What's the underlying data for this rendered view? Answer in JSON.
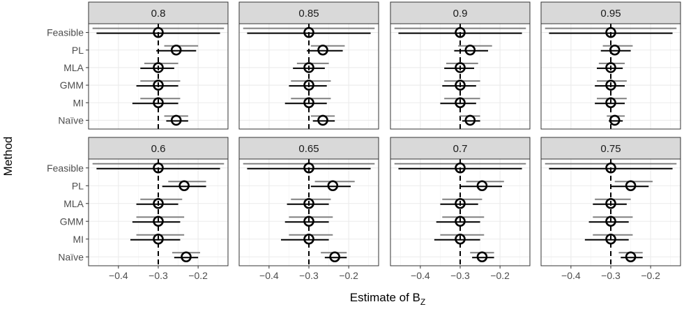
{
  "chart_data": {
    "type": "forest",
    "xlabel": "Estimate of B",
    "xlabel_subscript": "Z",
    "ylabel": "Method",
    "methods": [
      "Feasible",
      "PL",
      "MLA",
      "GMM",
      "MI",
      "Naïve"
    ],
    "xlim": [
      -0.475,
      -0.125
    ],
    "xticks": [
      -0.4,
      -0.3,
      -0.2
    ],
    "xtick_labels": [
      "−0.4",
      "−0.3",
      "−0.2"
    ],
    "reference_line": -0.3,
    "grid": true,
    "colors": {
      "interval": "#000000",
      "reference_interval": "#808080",
      "strip_fill": "#d9d9d9",
      "panel_border": "#333333",
      "grid": "#ebebeb"
    },
    "panels": [
      {
        "label": "0.8",
        "points": [
          {
            "method": "Feasible",
            "est": -0.3,
            "low": -0.455,
            "high": -0.145,
            "ref_low": -0.465,
            "ref_high": -0.135
          },
          {
            "method": "PL",
            "est": -0.255,
            "low": -0.305,
            "high": -0.205,
            "ref_low": -0.285,
            "ref_high": -0.2
          },
          {
            "method": "MLA",
            "est": -0.3,
            "low": -0.345,
            "high": -0.26,
            "ref_low": -0.335,
            "ref_high": -0.25
          },
          {
            "method": "GMM",
            "est": -0.3,
            "low": -0.355,
            "high": -0.25,
            "ref_low": -0.345,
            "ref_high": -0.245
          },
          {
            "method": "MI",
            "est": -0.3,
            "low": -0.365,
            "high": -0.25,
            "ref_low": -0.345,
            "ref_high": -0.245
          },
          {
            "method": "Naïve",
            "est": -0.255,
            "low": -0.28,
            "high": -0.225,
            "ref_low": -0.285,
            "ref_high": -0.225
          }
        ]
      },
      {
        "label": "0.85",
        "points": [
          {
            "method": "Feasible",
            "est": -0.3,
            "low": -0.455,
            "high": -0.145,
            "ref_low": -0.465,
            "ref_high": -0.135
          },
          {
            "method": "PL",
            "est": -0.265,
            "low": -0.305,
            "high": -0.215,
            "ref_low": -0.295,
            "ref_high": -0.21
          },
          {
            "method": "MLA",
            "est": -0.3,
            "low": -0.34,
            "high": -0.26,
            "ref_low": -0.33,
            "ref_high": -0.25
          },
          {
            "method": "GMM",
            "est": -0.3,
            "low": -0.35,
            "high": -0.255,
            "ref_low": -0.345,
            "ref_high": -0.245
          },
          {
            "method": "MI",
            "est": -0.3,
            "low": -0.36,
            "high": -0.255,
            "ref_low": -0.345,
            "ref_high": -0.245
          },
          {
            "method": "Naïve",
            "est": -0.265,
            "low": -0.29,
            "high": -0.235,
            "ref_low": -0.295,
            "ref_high": -0.235
          }
        ]
      },
      {
        "label": "0.9",
        "points": [
          {
            "method": "Feasible",
            "est": -0.3,
            "low": -0.455,
            "high": -0.145,
            "ref_low": -0.465,
            "ref_high": -0.135
          },
          {
            "method": "PL",
            "est": -0.275,
            "low": -0.315,
            "high": -0.23,
            "ref_low": -0.305,
            "ref_high": -0.22
          },
          {
            "method": "MLA",
            "est": -0.3,
            "low": -0.34,
            "high": -0.265,
            "ref_low": -0.335,
            "ref_high": -0.255
          },
          {
            "method": "GMM",
            "est": -0.3,
            "low": -0.345,
            "high": -0.26,
            "ref_low": -0.34,
            "ref_high": -0.25
          },
          {
            "method": "MI",
            "est": -0.3,
            "low": -0.35,
            "high": -0.26,
            "ref_low": -0.34,
            "ref_high": -0.25
          },
          {
            "method": "Naïve",
            "est": -0.275,
            "low": -0.295,
            "high": -0.25,
            "ref_low": -0.3,
            "ref_high": -0.25
          }
        ]
      },
      {
        "label": "0.95",
        "points": [
          {
            "method": "Feasible",
            "est": -0.3,
            "low": -0.455,
            "high": -0.145,
            "ref_low": -0.465,
            "ref_high": -0.135
          },
          {
            "method": "PL",
            "est": -0.29,
            "low": -0.325,
            "high": -0.25,
            "ref_low": -0.32,
            "ref_high": -0.245
          },
          {
            "method": "MLA",
            "est": -0.3,
            "low": -0.335,
            "high": -0.27,
            "ref_low": -0.33,
            "ref_high": -0.265
          },
          {
            "method": "GMM",
            "est": -0.3,
            "low": -0.34,
            "high": -0.265,
            "ref_low": -0.335,
            "ref_high": -0.26
          },
          {
            "method": "MI",
            "est": -0.3,
            "low": -0.34,
            "high": -0.265,
            "ref_low": -0.335,
            "ref_high": -0.26
          },
          {
            "method": "Naïve",
            "est": -0.29,
            "low": -0.305,
            "high": -0.27,
            "ref_low": -0.31,
            "ref_high": -0.265
          }
        ]
      },
      {
        "label": "0.6",
        "points": [
          {
            "method": "Feasible",
            "est": -0.3,
            "low": -0.455,
            "high": -0.145,
            "ref_low": -0.465,
            "ref_high": -0.135
          },
          {
            "method": "PL",
            "est": -0.235,
            "low": -0.29,
            "high": -0.18,
            "ref_low": -0.275,
            "ref_high": -0.18
          },
          {
            "method": "MLA",
            "est": -0.3,
            "low": -0.355,
            "high": -0.25,
            "ref_low": -0.345,
            "ref_high": -0.24
          },
          {
            "method": "GMM",
            "est": -0.3,
            "low": -0.365,
            "high": -0.245,
            "ref_low": -0.355,
            "ref_high": -0.235
          },
          {
            "method": "MI",
            "est": -0.3,
            "low": -0.37,
            "high": -0.245,
            "ref_low": -0.355,
            "ref_high": -0.235
          },
          {
            "method": "Naïve",
            "est": -0.23,
            "low": -0.26,
            "high": -0.2,
            "ref_low": -0.265,
            "ref_high": -0.195
          }
        ]
      },
      {
        "label": "0.65",
        "points": [
          {
            "method": "Feasible",
            "est": -0.3,
            "low": -0.455,
            "high": -0.145,
            "ref_low": -0.465,
            "ref_high": -0.135
          },
          {
            "method": "PL",
            "est": -0.24,
            "low": -0.295,
            "high": -0.195,
            "ref_low": -0.285,
            "ref_high": -0.185
          },
          {
            "method": "MLA",
            "est": -0.3,
            "low": -0.355,
            "high": -0.25,
            "ref_low": -0.345,
            "ref_high": -0.245
          },
          {
            "method": "GMM",
            "est": -0.3,
            "low": -0.36,
            "high": -0.25,
            "ref_low": -0.35,
            "ref_high": -0.24
          },
          {
            "method": "MI",
            "est": -0.3,
            "low": -0.37,
            "high": -0.25,
            "ref_low": -0.35,
            "ref_high": -0.24
          },
          {
            "method": "Naïve",
            "est": -0.235,
            "low": -0.26,
            "high": -0.205,
            "ref_low": -0.27,
            "ref_high": -0.205
          }
        ]
      },
      {
        "label": "0.7",
        "points": [
          {
            "method": "Feasible",
            "est": -0.3,
            "low": -0.455,
            "high": -0.145,
            "ref_low": -0.465,
            "ref_high": -0.135
          },
          {
            "method": "PL",
            "est": -0.245,
            "low": -0.3,
            "high": -0.195,
            "ref_low": -0.285,
            "ref_high": -0.19
          },
          {
            "method": "MLA",
            "est": -0.3,
            "low": -0.35,
            "high": -0.255,
            "ref_low": -0.345,
            "ref_high": -0.245
          },
          {
            "method": "GMM",
            "est": -0.3,
            "low": -0.36,
            "high": -0.25,
            "ref_low": -0.345,
            "ref_high": -0.24
          },
          {
            "method": "MI",
            "est": -0.3,
            "low": -0.365,
            "high": -0.25,
            "ref_low": -0.35,
            "ref_high": -0.24
          },
          {
            "method": "Naïve",
            "est": -0.245,
            "low": -0.27,
            "high": -0.215,
            "ref_low": -0.275,
            "ref_high": -0.215
          }
        ]
      },
      {
        "label": "0.75",
        "points": [
          {
            "method": "Feasible",
            "est": -0.3,
            "low": -0.455,
            "high": -0.145,
            "ref_low": -0.465,
            "ref_high": -0.135
          },
          {
            "method": "PL",
            "est": -0.25,
            "low": -0.3,
            "high": -0.205,
            "ref_low": -0.29,
            "ref_high": -0.195
          },
          {
            "method": "MLA",
            "est": -0.3,
            "low": -0.345,
            "high": -0.26,
            "ref_low": -0.34,
            "ref_high": -0.25
          },
          {
            "method": "GMM",
            "est": -0.3,
            "low": -0.355,
            "high": -0.255,
            "ref_low": -0.345,
            "ref_high": -0.245
          },
          {
            "method": "MI",
            "est": -0.3,
            "low": -0.365,
            "high": -0.255,
            "ref_low": -0.345,
            "ref_high": -0.245
          },
          {
            "method": "Naïve",
            "est": -0.25,
            "low": -0.275,
            "high": -0.22,
            "ref_low": -0.28,
            "ref_high": -0.22
          }
        ]
      }
    ]
  }
}
